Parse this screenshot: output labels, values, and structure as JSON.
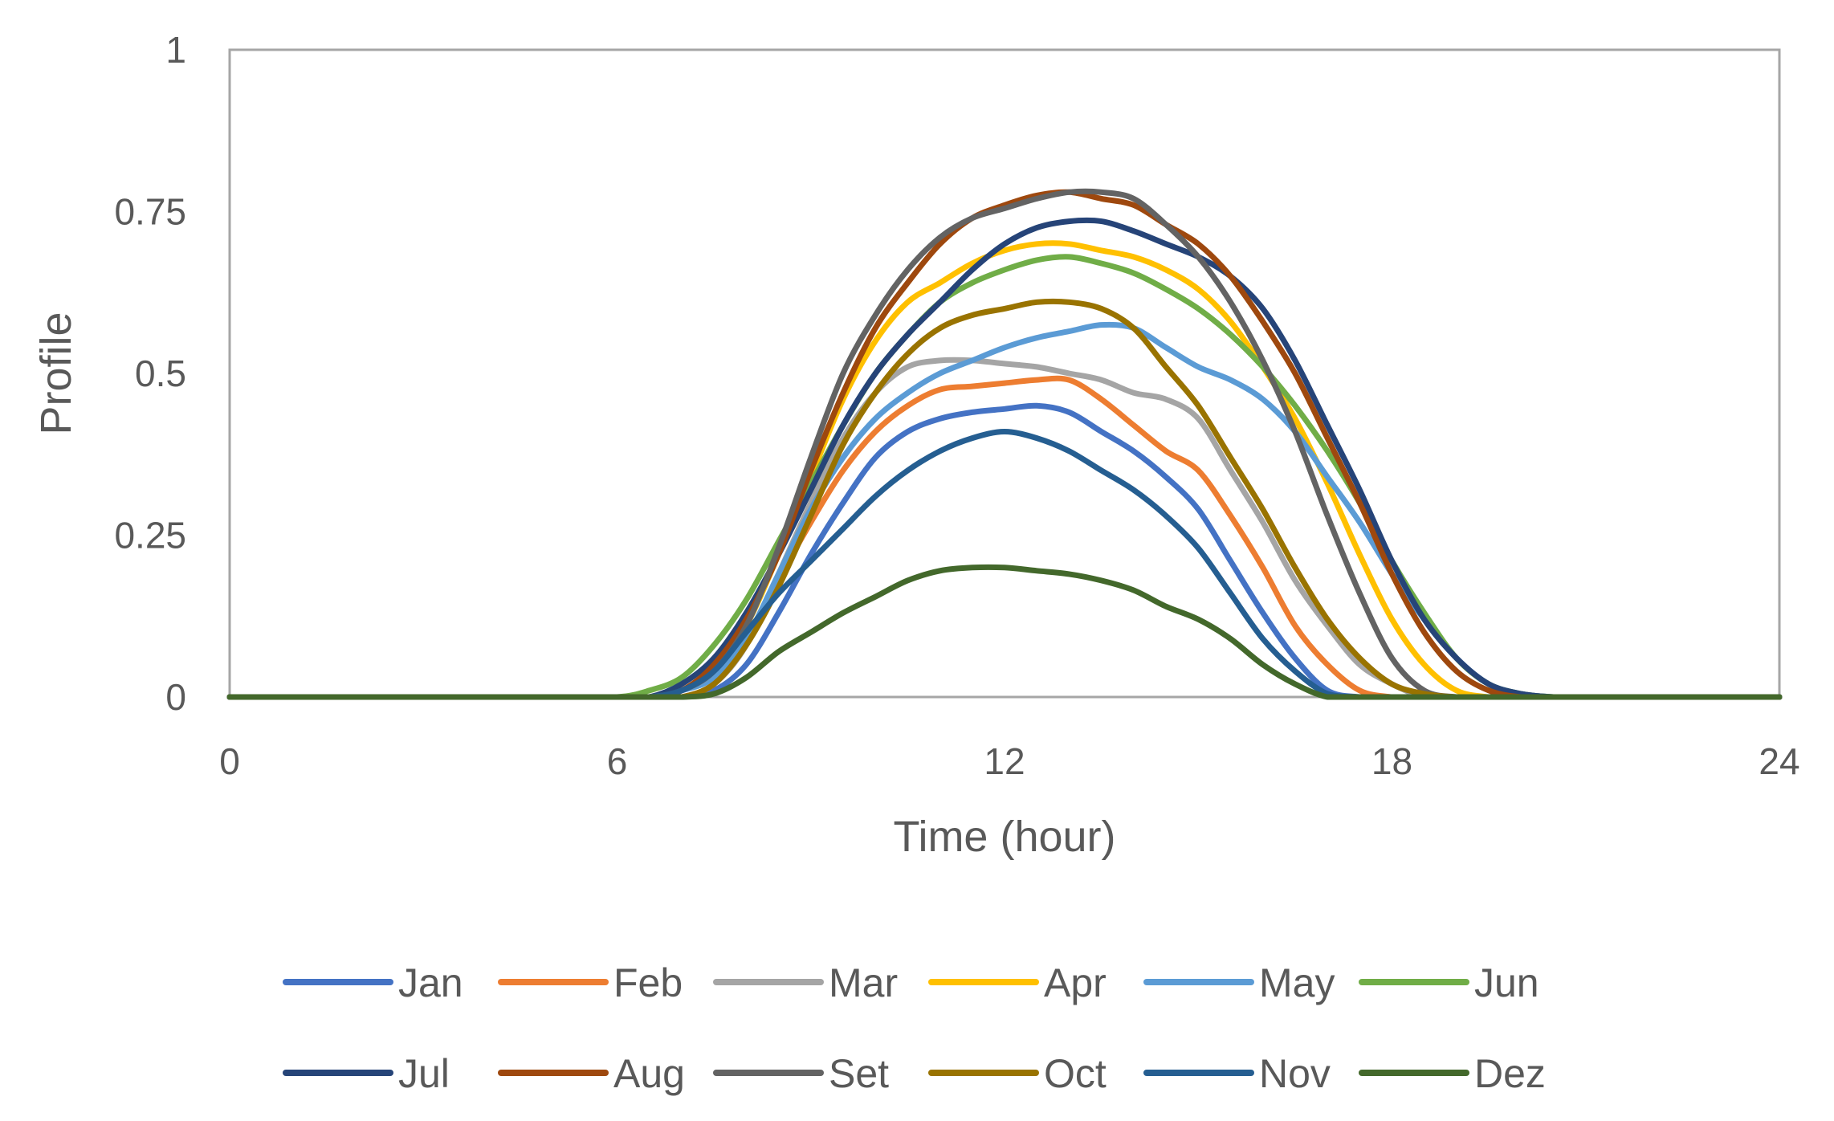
{
  "chart_data": {
    "type": "line",
    "title": "",
    "xlabel": "Time (hour)",
    "ylabel": "Profile",
    "xlim": [
      0,
      24
    ],
    "ylim": [
      0,
      1
    ],
    "xticks": [
      0,
      6,
      12,
      18,
      24
    ],
    "xtick_labels": [
      "0",
      "6",
      "12",
      "18",
      "24"
    ],
    "yticks": [
      0,
      0.25,
      0.5,
      0.75,
      1
    ],
    "ytick_labels": [
      "0",
      "0.25",
      "0.5",
      "0.75",
      "1"
    ],
    "grid": false,
    "legend_position": "bottom",
    "x": [
      0,
      1,
      2,
      3,
      4,
      5,
      6,
      6.5,
      7,
      7.5,
      8,
      8.5,
      9,
      9.5,
      10,
      10.5,
      11,
      11.5,
      12,
      12.5,
      13,
      13.5,
      14,
      14.5,
      15,
      15.5,
      16,
      16.5,
      17,
      17.5,
      18,
      18.5,
      19,
      19.5,
      20,
      20.5,
      21,
      22,
      23,
      24
    ],
    "series": [
      {
        "name": "Jan",
        "color": "#4472C4",
        "values": [
          0,
          0,
          0,
          0,
          0,
          0,
          0,
          0,
          0,
          0.01,
          0.05,
          0.13,
          0.22,
          0.3,
          0.37,
          0.41,
          0.43,
          0.44,
          0.445,
          0.45,
          0.44,
          0.41,
          0.38,
          0.34,
          0.29,
          0.21,
          0.13,
          0.06,
          0.01,
          0,
          0,
          0,
          0,
          0,
          0,
          0,
          0,
          0,
          0,
          0
        ]
      },
      {
        "name": "Feb",
        "color": "#ED7D31",
        "values": [
          0,
          0,
          0,
          0,
          0,
          0,
          0,
          0,
          0,
          0.02,
          0.08,
          0.18,
          0.27,
          0.35,
          0.41,
          0.45,
          0.475,
          0.48,
          0.485,
          0.49,
          0.49,
          0.46,
          0.42,
          0.38,
          0.35,
          0.28,
          0.2,
          0.11,
          0.05,
          0.01,
          0,
          0,
          0,
          0,
          0,
          0,
          0,
          0,
          0,
          0
        ]
      },
      {
        "name": "Mar",
        "color": "#A5A5A5",
        "values": [
          0,
          0,
          0,
          0,
          0,
          0,
          0,
          0,
          0,
          0.02,
          0.08,
          0.19,
          0.3,
          0.4,
          0.47,
          0.51,
          0.52,
          0.52,
          0.515,
          0.51,
          0.5,
          0.49,
          0.47,
          0.46,
          0.43,
          0.35,
          0.27,
          0.18,
          0.11,
          0.05,
          0.02,
          0,
          0,
          0,
          0,
          0,
          0,
          0,
          0,
          0
        ]
      },
      {
        "name": "Apr",
        "color": "#FFC000",
        "values": [
          0,
          0,
          0,
          0,
          0,
          0,
          0,
          0,
          0.01,
          0.04,
          0.11,
          0.22,
          0.34,
          0.46,
          0.55,
          0.61,
          0.64,
          0.67,
          0.69,
          0.7,
          0.7,
          0.69,
          0.68,
          0.66,
          0.63,
          0.58,
          0.51,
          0.43,
          0.33,
          0.22,
          0.12,
          0.05,
          0.01,
          0,
          0,
          0,
          0,
          0,
          0,
          0
        ]
      },
      {
        "name": "May",
        "color": "#5B9BD5",
        "values": [
          0,
          0,
          0,
          0,
          0,
          0,
          0,
          0,
          0.01,
          0.03,
          0.09,
          0.19,
          0.29,
          0.37,
          0.43,
          0.47,
          0.5,
          0.52,
          0.54,
          0.555,
          0.565,
          0.575,
          0.57,
          0.54,
          0.51,
          0.49,
          0.46,
          0.41,
          0.34,
          0.27,
          0.19,
          0.12,
          0.06,
          0.02,
          0.005,
          0,
          0,
          0,
          0,
          0
        ]
      },
      {
        "name": "Jun",
        "color": "#70AD47",
        "values": [
          0,
          0,
          0,
          0,
          0,
          0,
          0,
          0.01,
          0.03,
          0.08,
          0.15,
          0.24,
          0.33,
          0.42,
          0.5,
          0.56,
          0.61,
          0.64,
          0.66,
          0.675,
          0.68,
          0.67,
          0.655,
          0.63,
          0.6,
          0.56,
          0.51,
          0.45,
          0.38,
          0.3,
          0.21,
          0.13,
          0.06,
          0.02,
          0.005,
          0,
          0,
          0,
          0,
          0
        ]
      },
      {
        "name": "Jul",
        "color": "#264478",
        "values": [
          0,
          0,
          0,
          0,
          0,
          0,
          0,
          0,
          0.02,
          0.06,
          0.13,
          0.22,
          0.32,
          0.42,
          0.5,
          0.56,
          0.61,
          0.66,
          0.7,
          0.725,
          0.735,
          0.735,
          0.72,
          0.7,
          0.68,
          0.65,
          0.6,
          0.52,
          0.42,
          0.32,
          0.21,
          0.12,
          0.06,
          0.02,
          0.005,
          0,
          0,
          0,
          0,
          0
        ]
      },
      {
        "name": "Aug",
        "color": "#9E480E",
        "values": [
          0,
          0,
          0,
          0,
          0,
          0,
          0,
          0,
          0.01,
          0.05,
          0.12,
          0.22,
          0.35,
          0.47,
          0.57,
          0.64,
          0.7,
          0.74,
          0.76,
          0.775,
          0.78,
          0.77,
          0.76,
          0.73,
          0.7,
          0.65,
          0.58,
          0.5,
          0.4,
          0.3,
          0.19,
          0.1,
          0.04,
          0.01,
          0,
          0,
          0,
          0,
          0,
          0
        ]
      },
      {
        "name": "Set",
        "color": "#636363",
        "values": [
          0,
          0,
          0,
          0,
          0,
          0,
          0,
          0,
          0.01,
          0.04,
          0.11,
          0.23,
          0.37,
          0.5,
          0.59,
          0.66,
          0.71,
          0.74,
          0.755,
          0.77,
          0.78,
          0.78,
          0.77,
          0.73,
          0.68,
          0.61,
          0.52,
          0.41,
          0.28,
          0.16,
          0.06,
          0.01,
          0,
          0,
          0,
          0,
          0,
          0,
          0,
          0
        ]
      },
      {
        "name": "Oct",
        "color": "#997300",
        "values": [
          0,
          0,
          0,
          0,
          0,
          0,
          0,
          0,
          0,
          0.02,
          0.08,
          0.17,
          0.28,
          0.39,
          0.47,
          0.53,
          0.57,
          0.59,
          0.6,
          0.61,
          0.61,
          0.6,
          0.57,
          0.51,
          0.45,
          0.37,
          0.29,
          0.2,
          0.12,
          0.06,
          0.02,
          0.005,
          0,
          0,
          0,
          0,
          0,
          0,
          0,
          0
        ]
      },
      {
        "name": "Nov",
        "color": "#255E91",
        "values": [
          0,
          0,
          0,
          0,
          0,
          0,
          0,
          0,
          0.01,
          0.04,
          0.1,
          0.16,
          0.21,
          0.26,
          0.31,
          0.35,
          0.38,
          0.4,
          0.41,
          0.4,
          0.38,
          0.35,
          0.32,
          0.28,
          0.23,
          0.16,
          0.09,
          0.04,
          0.005,
          0,
          0,
          0,
          0,
          0,
          0,
          0,
          0,
          0,
          0,
          0
        ]
      },
      {
        "name": "Dez",
        "color": "#43682B",
        "values": [
          0,
          0,
          0,
          0,
          0,
          0,
          0,
          0,
          0,
          0.005,
          0.03,
          0.07,
          0.1,
          0.13,
          0.155,
          0.18,
          0.195,
          0.2,
          0.2,
          0.195,
          0.19,
          0.18,
          0.165,
          0.14,
          0.12,
          0.09,
          0.05,
          0.02,
          0,
          0,
          0,
          0,
          0,
          0,
          0,
          0,
          0,
          0,
          0,
          0
        ]
      }
    ]
  }
}
